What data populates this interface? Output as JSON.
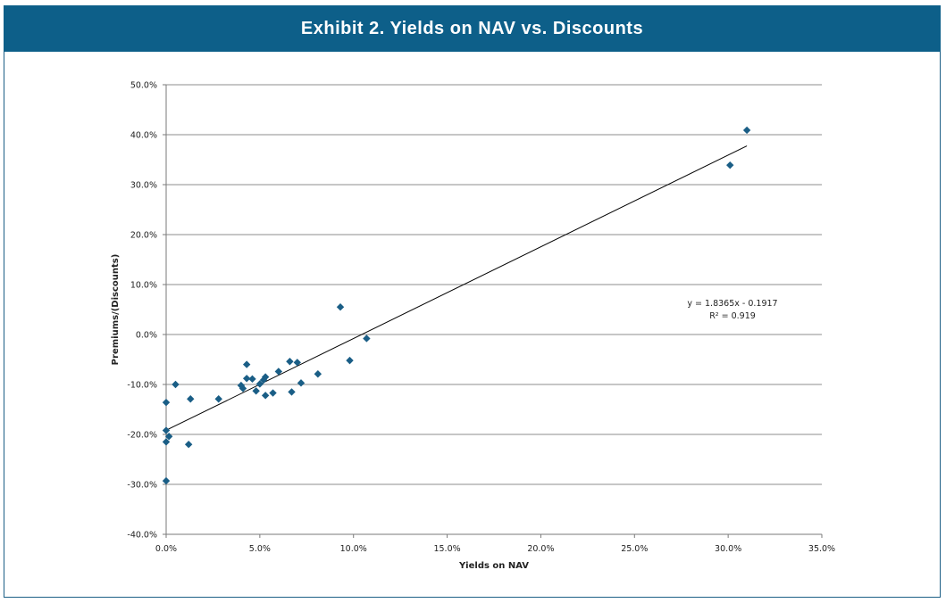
{
  "page": {
    "title": "Exhibit 2. Yields on NAV vs. Discounts"
  },
  "colors": {
    "title_bar": "#0d5f89",
    "marker": "#1a5e86",
    "gridline": "#8c8c8c",
    "trendline": "#000000"
  },
  "chart_data": {
    "type": "scatter",
    "title": "",
    "xlabel": "Yields on NAV",
    "ylabel": "Premiums/(Discounts)",
    "xlim": [
      0,
      35
    ],
    "ylim": [
      -40,
      50
    ],
    "x_ticks": [
      0,
      5,
      10,
      15,
      20,
      25,
      30,
      35
    ],
    "x_tick_labels": [
      "0.0%",
      "5.0%",
      "10.0%",
      "15.0%",
      "20.0%",
      "25.0%",
      "30.0%",
      "35.0%"
    ],
    "y_ticks": [
      50,
      40,
      30,
      20,
      10,
      0,
      -10,
      -20,
      -30,
      -40
    ],
    "y_tick_labels": [
      "50.0%",
      "40.0%",
      "30.0%",
      "20.0%",
      "10.0%",
      "0.0%",
      "-10.0%",
      "-20.0%",
      "-30.0%",
      "-40.0%"
    ],
    "grid": "horizontal",
    "marker": "diamond",
    "series": [
      {
        "points": [
          [
            31.0,
            40.9
          ],
          [
            30.1,
            33.9
          ],
          [
            10.7,
            -0.8
          ],
          [
            9.3,
            5.5
          ],
          [
            9.8,
            -5.2
          ],
          [
            8.1,
            -7.9
          ],
          [
            7.2,
            -9.7
          ],
          [
            7.0,
            -5.6
          ],
          [
            6.6,
            -5.4
          ],
          [
            6.7,
            -11.5
          ],
          [
            6.0,
            -7.4
          ],
          [
            5.7,
            -11.7
          ],
          [
            5.3,
            -8.5
          ],
          [
            5.2,
            -9.1
          ],
          [
            5.0,
            -9.9
          ],
          [
            5.3,
            -12.2
          ],
          [
            4.8,
            -11.3
          ],
          [
            4.6,
            -8.9
          ],
          [
            4.3,
            -8.8
          ],
          [
            4.3,
            -6.0
          ],
          [
            4.1,
            -10.8
          ],
          [
            4.0,
            -10.2
          ],
          [
            2.8,
            -12.9
          ],
          [
            1.3,
            -12.9
          ],
          [
            1.2,
            -22.0
          ],
          [
            0.5,
            -10.0
          ],
          [
            0.0,
            -13.6
          ],
          [
            0.0,
            -19.2
          ],
          [
            0.15,
            -20.4
          ],
          [
            0.0,
            -21.5
          ],
          [
            0.0,
            -29.3
          ]
        ]
      }
    ],
    "trendline": {
      "type": "linear",
      "slope": 1.8365,
      "intercept": -0.1917,
      "equation": "y = 1.8365x - 0.1917",
      "r_squared": "R² = 0.919"
    }
  }
}
